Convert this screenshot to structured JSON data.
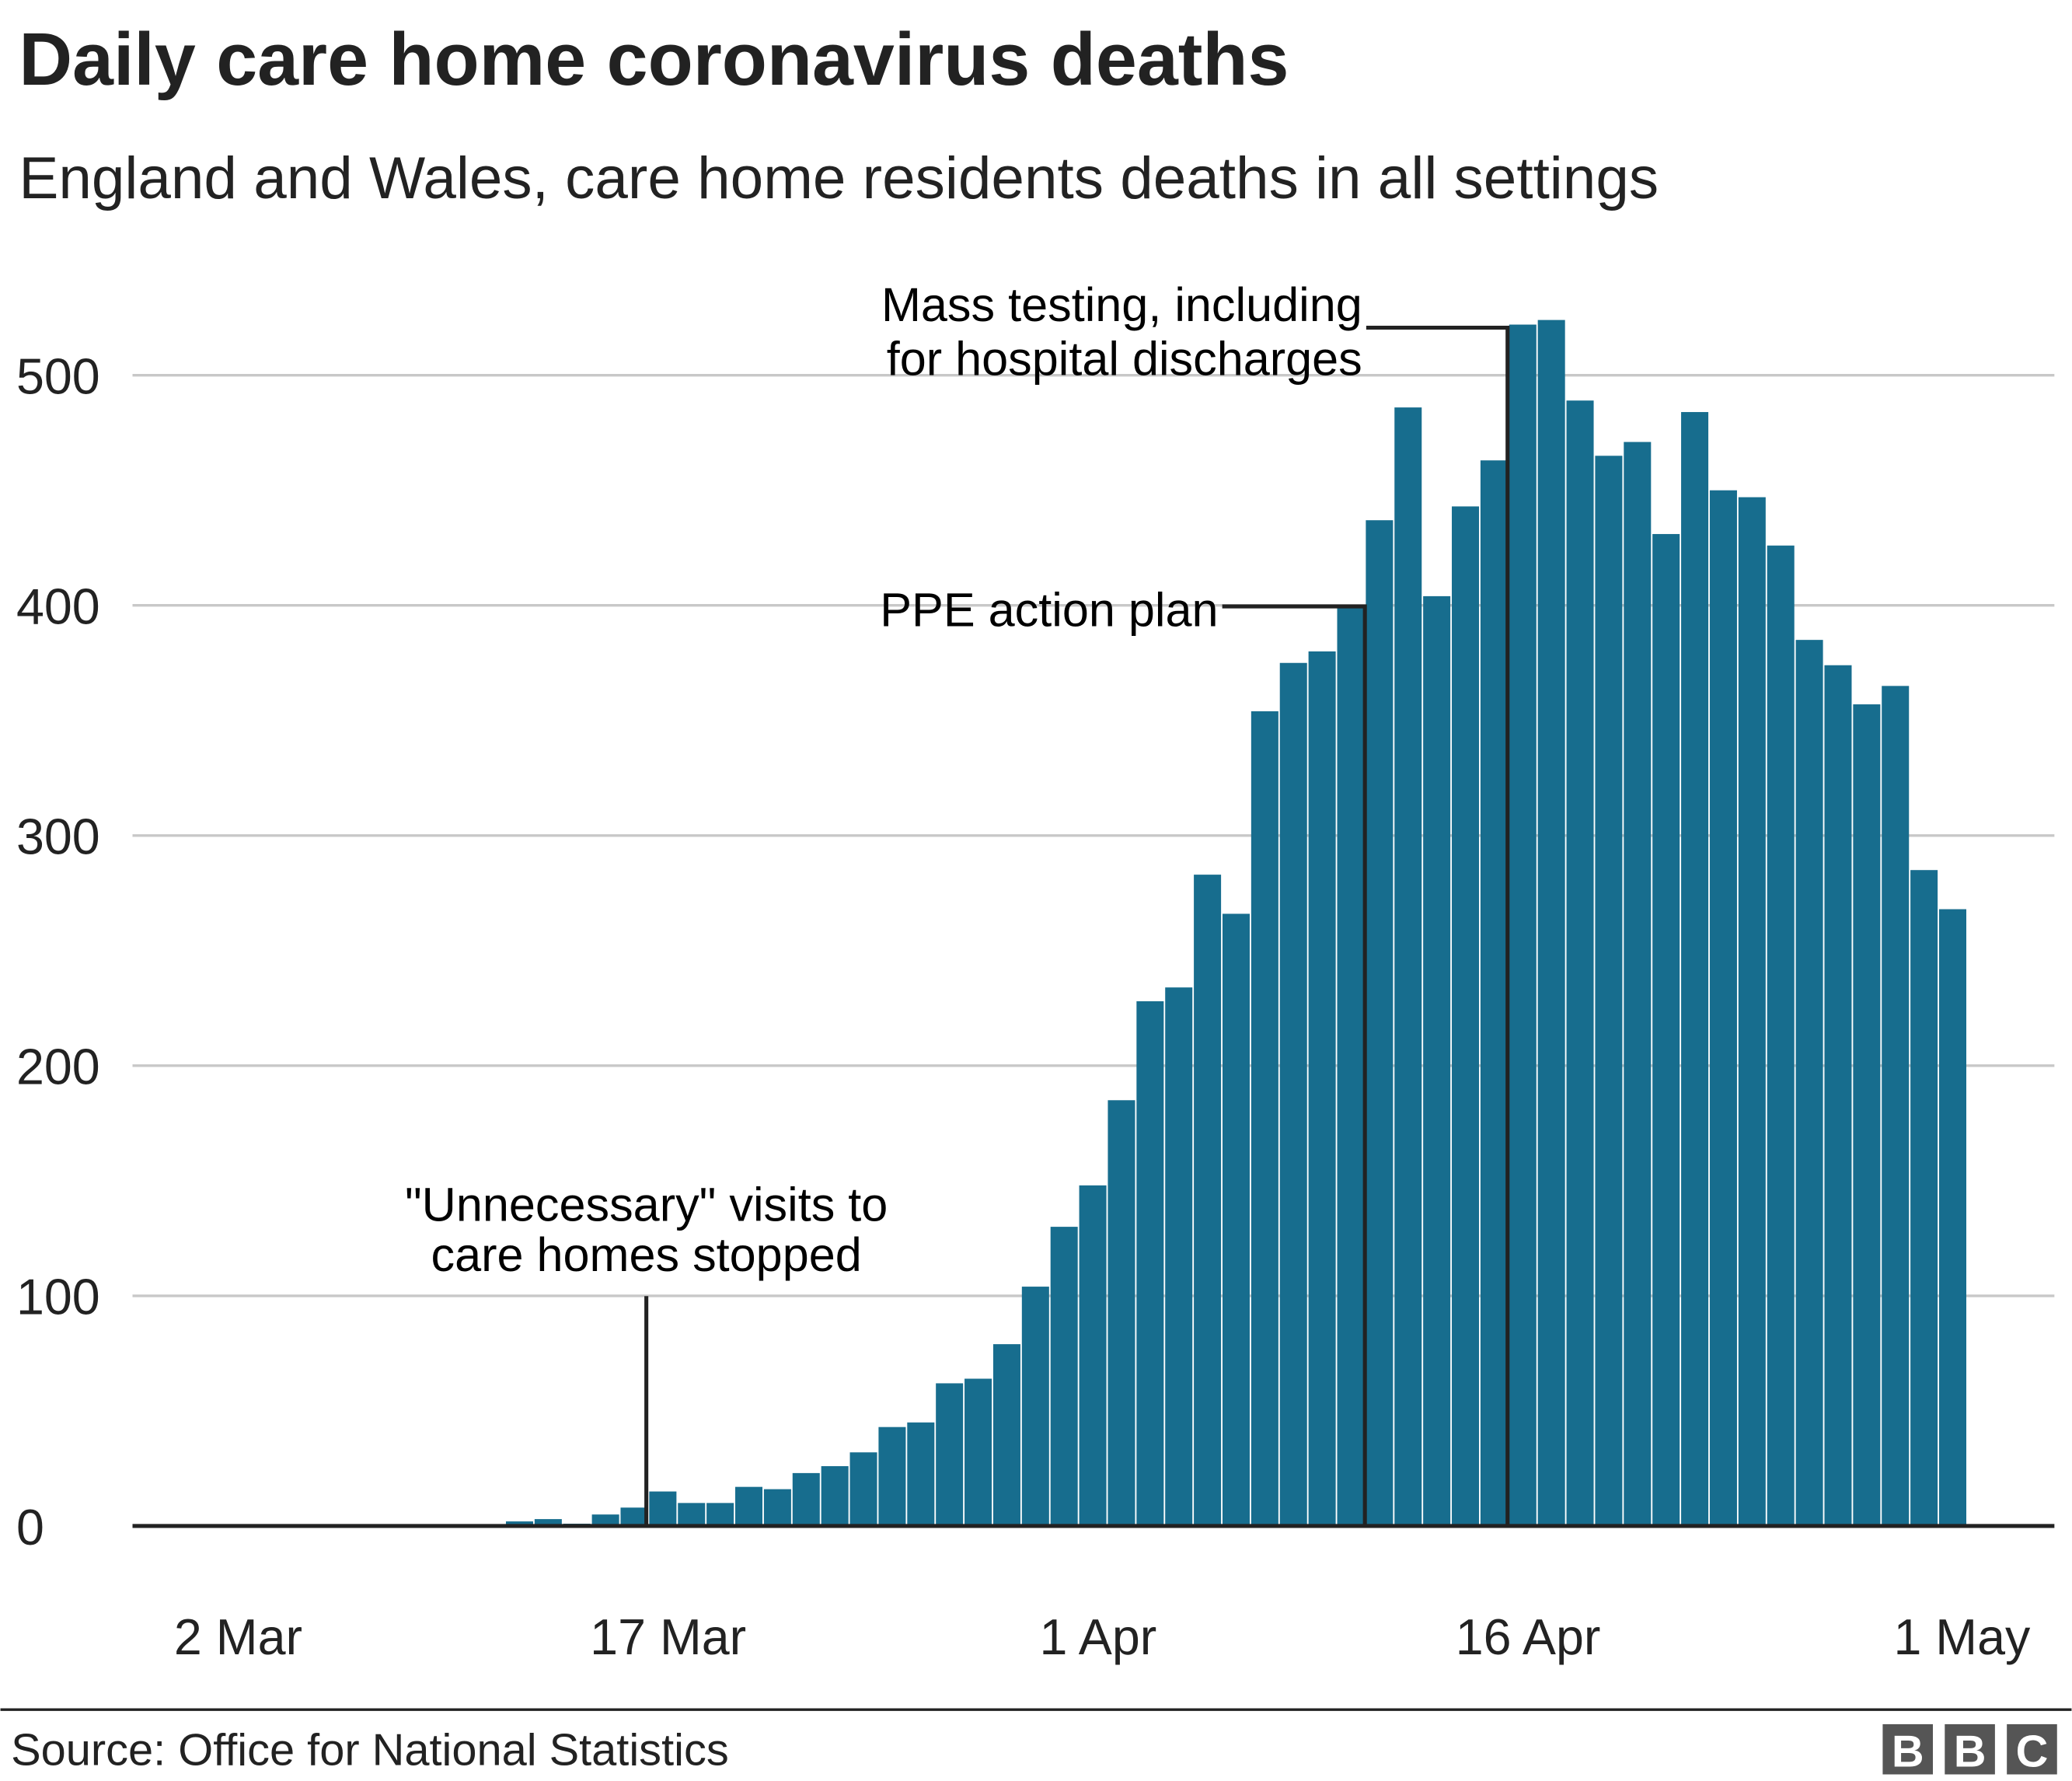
{
  "chart_data": {
    "type": "bar",
    "title": "Daily care home coronavirus deaths",
    "subtitle": "England and Wales, care home residents deaths in all settings",
    "xlabel": "",
    "ylabel": "",
    "ylim": [
      0,
      540
    ],
    "yticks": [
      "0",
      "100",
      "200",
      "300",
      "400",
      "500"
    ],
    "xticks": [
      "2 Mar",
      "17 Mar",
      "1 Apr",
      "16 Apr",
      "1 May"
    ],
    "grid": true,
    "start_date": "2 Mar",
    "values": [
      0,
      0,
      0,
      0,
      0,
      0,
      0,
      0,
      0,
      0,
      2,
      3,
      1,
      5,
      8,
      15,
      10,
      10,
      17,
      16,
      23,
      26,
      32,
      43,
      45,
      62,
      64,
      79,
      104,
      130,
      148,
      185,
      228,
      234,
      283,
      266,
      354,
      375,
      380,
      400,
      437,
      486,
      404,
      443,
      463,
      522,
      524,
      489,
      465,
      471,
      431,
      484,
      450,
      447,
      426,
      385,
      374,
      357,
      365,
      285,
      268
    ],
    "color": "#176d8e",
    "annotations": [
      {
        "lines": [
          "\"Unnecessary\" visits to",
          "care homes stopped"
        ],
        "date": "17 Mar"
      },
      {
        "lines": [
          "PPE action plan"
        ],
        "date": "15 Apr"
      },
      {
        "lines": [
          "Mass testing, including",
          "for hospital discharges"
        ],
        "date": "16 Apr"
      }
    ]
  },
  "footer": {
    "source": "Source: Office for National Statistics",
    "logo": "BBC"
  }
}
